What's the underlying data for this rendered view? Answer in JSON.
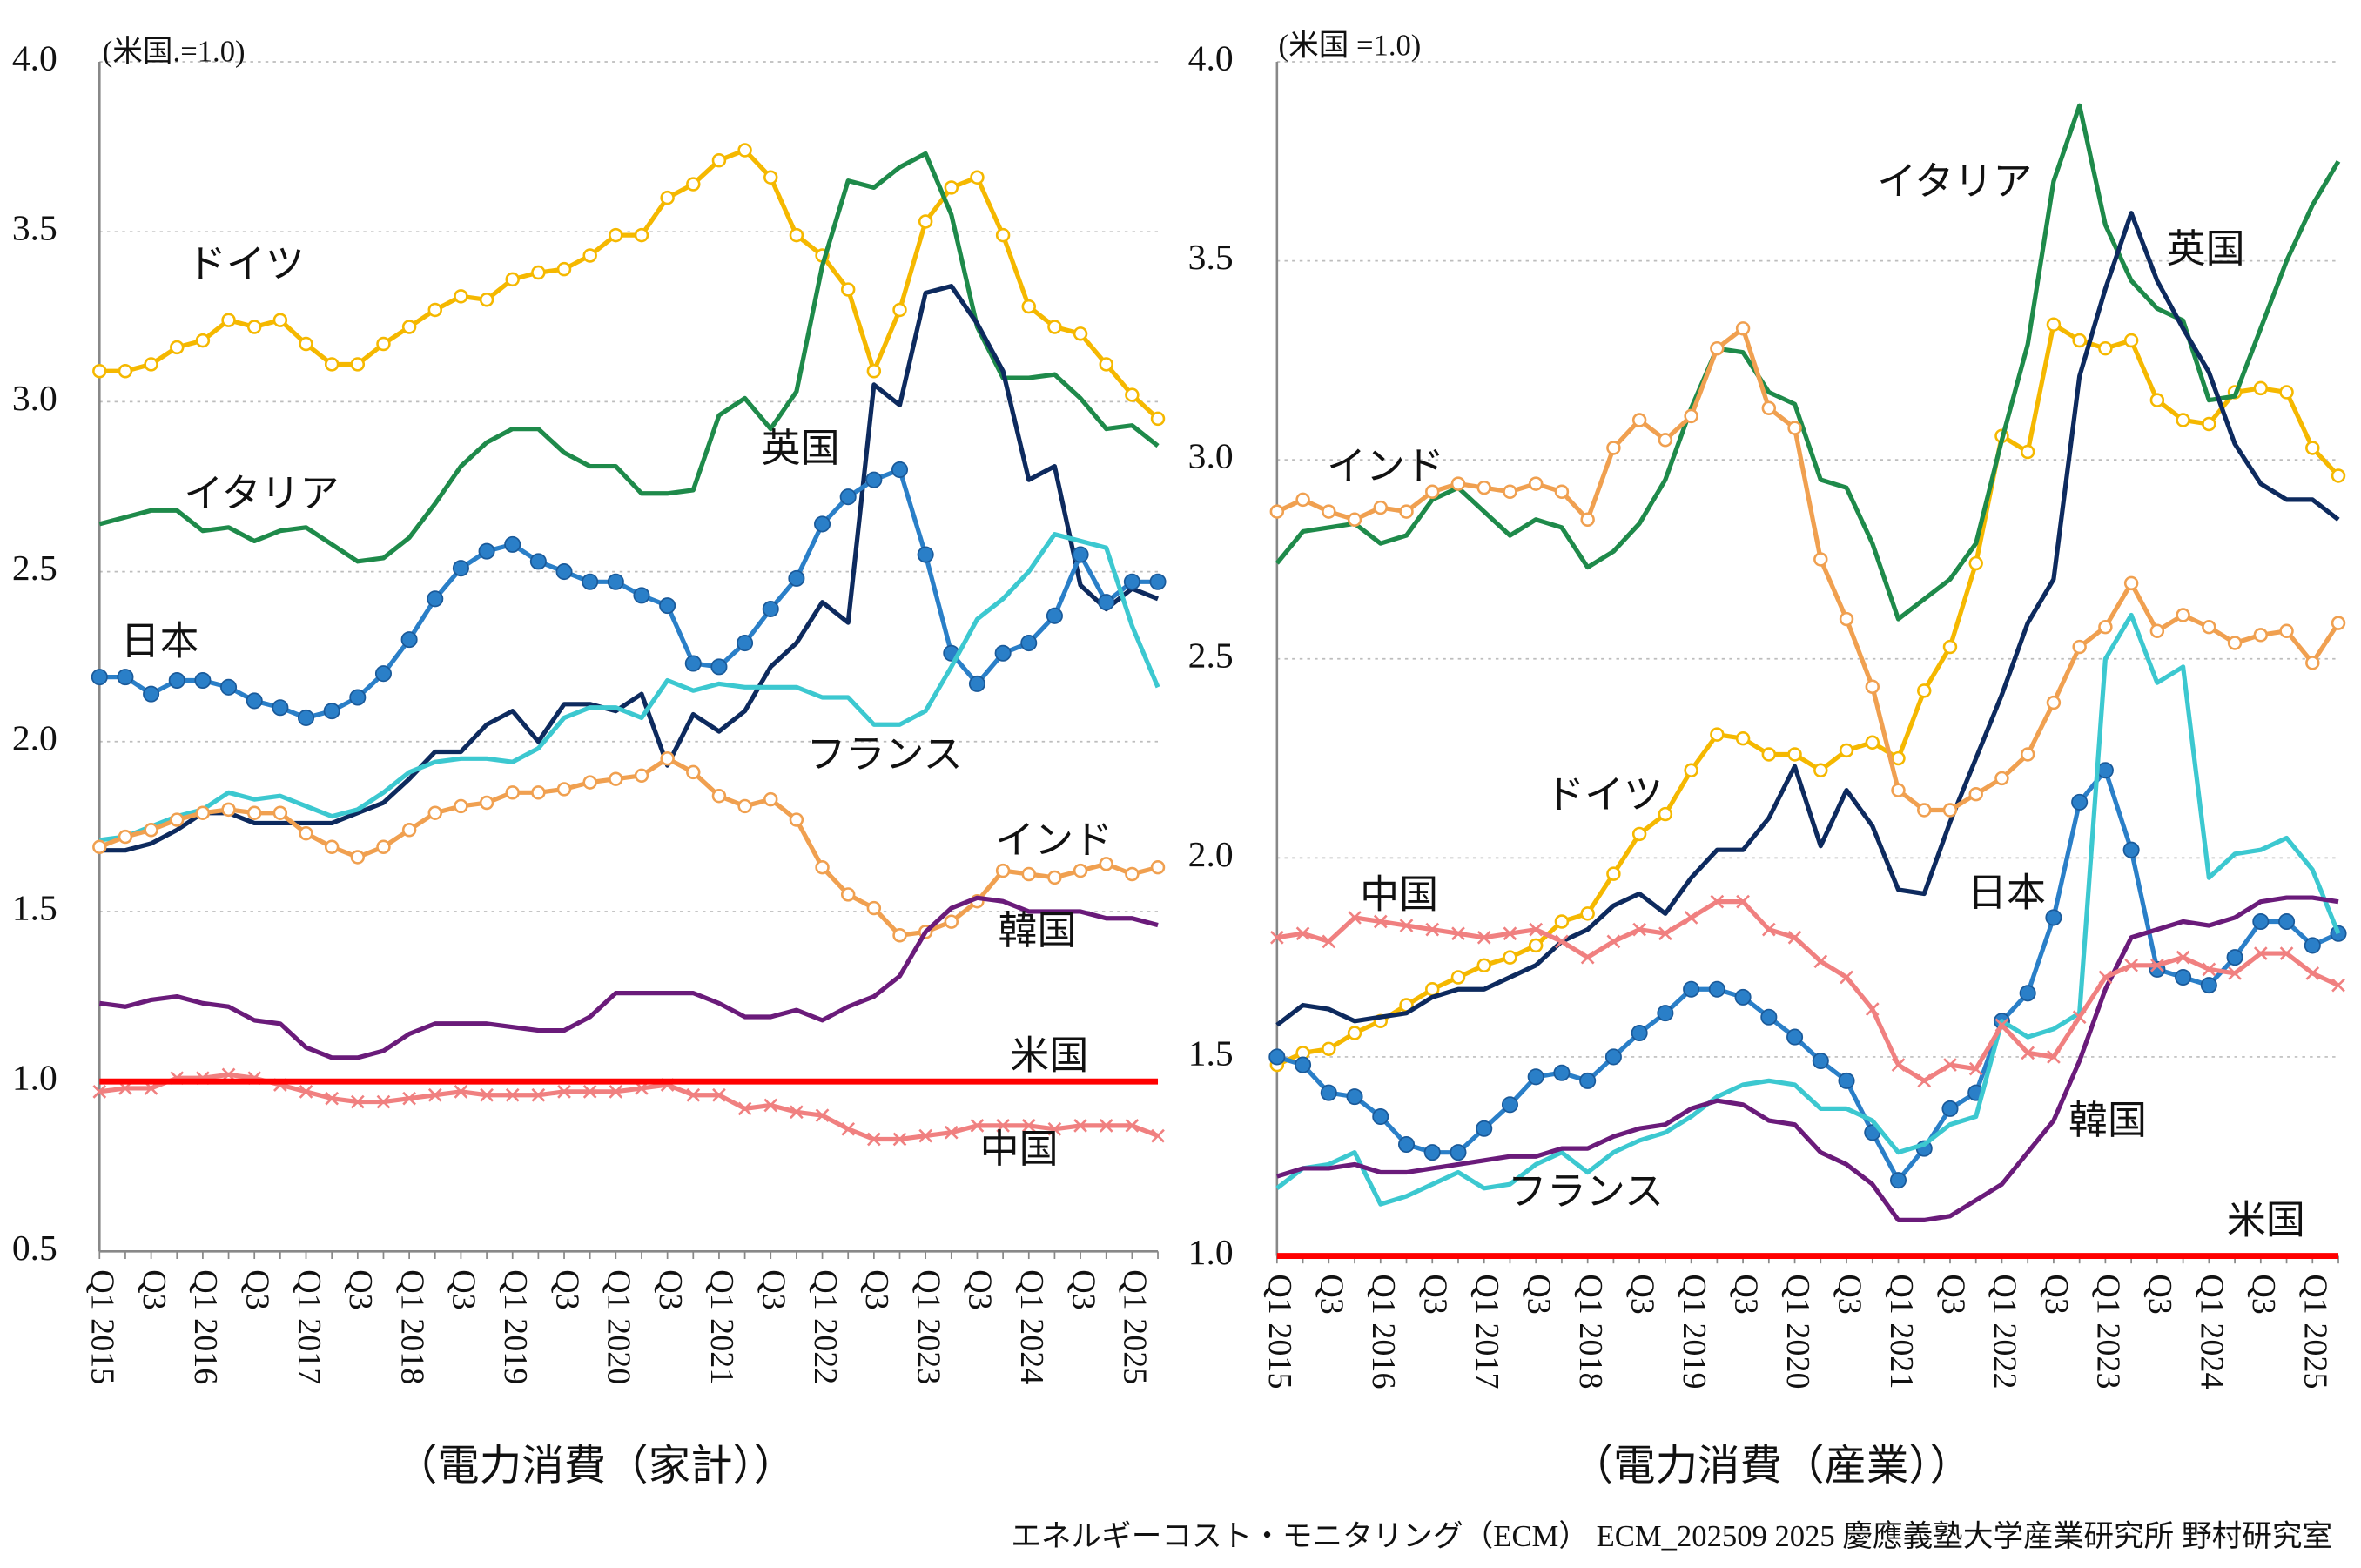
{
  "chart_data": [
    {
      "type": "line",
      "note": "(米国.=1.0)",
      "xlabel": "（電力消費（家計））",
      "categories": [
        "Q1 2015",
        null,
        "Q3",
        null,
        "Q1 2016",
        null,
        "Q3",
        null,
        "Q1 2017",
        null,
        "Q3",
        null,
        "Q1 2018",
        null,
        "Q3",
        null,
        "Q1 2019",
        null,
        "Q3",
        null,
        "Q1 2020",
        null,
        "Q3",
        null,
        "Q1 2021",
        null,
        "Q3",
        null,
        "Q1 2022",
        null,
        "Q3",
        null,
        "Q1 2023",
        null,
        "Q3",
        null,
        "Q1 2024",
        null,
        "Q3",
        null,
        "Q1 2025",
        null
      ],
      "ylim": [
        0.5,
        4
      ],
      "yticks": [
        0.5,
        {
          "value": 1,
          "label": "1.0"
        },
        1.5,
        {
          "value": 2,
          "label": "2.0"
        },
        2.5,
        {
          "value": 3,
          "label": "3.0"
        },
        3.5,
        {
          "value": 4,
          "label": "4.0"
        }
      ],
      "grid": true,
      "series": [
        {
          "name": "ドイツ",
          "color": "#f5b800",
          "marker": "open-circle",
          "values": [
            3.09,
            3.09,
            3.11,
            3.16,
            3.18,
            3.24,
            3.22,
            3.24,
            3.17,
            3.11,
            3.11,
            3.17,
            3.22,
            3.27,
            3.31,
            3.3,
            3.36,
            3.38,
            3.39,
            3.43,
            3.49,
            3.49,
            3.6,
            3.64,
            3.71,
            3.74,
            3.66,
            3.49,
            3.43,
            3.33,
            3.09,
            3.27,
            3.53,
            3.63,
            3.66,
            3.49,
            3.28,
            3.22,
            3.2,
            3.11,
            3.02,
            2.95
          ]
        },
        {
          "name": "イタリア",
          "color": "#1e8a4a",
          "values": [
            2.64,
            2.66,
            2.68,
            2.68,
            2.62,
            2.63,
            2.59,
            2.62,
            2.63,
            2.58,
            2.53,
            2.54,
            2.6,
            2.7,
            2.81,
            2.88,
            2.92,
            2.92,
            2.85,
            2.81,
            2.81,
            2.73,
            2.73,
            2.74,
            2.96,
            3.01,
            2.92,
            3.03,
            3.4,
            3.65,
            3.63,
            3.69,
            3.73,
            3.55,
            3.22,
            3.07,
            3.07,
            3.08,
            3.01,
            2.92,
            2.93,
            2.87
          ]
        },
        {
          "name": "英国",
          "color": "#0d2a5e",
          "values": [
            1.68,
            1.68,
            1.7,
            1.74,
            1.79,
            1.79,
            1.76,
            1.76,
            1.76,
            1.76,
            1.79,
            1.82,
            1.89,
            1.97,
            1.97,
            2.05,
            2.09,
            2.0,
            2.11,
            2.11,
            2.09,
            2.14,
            1.93,
            2.08,
            2.03,
            2.09,
            2.22,
            2.29,
            2.41,
            2.35,
            3.05,
            2.99,
            3.32,
            3.34,
            3.23,
            3.09,
            2.77,
            2.81,
            2.46,
            2.39,
            2.45,
            2.42
          ]
        },
        {
          "name": "日本",
          "color": "#2a7fc8",
          "marker": "filled-circle",
          "values": [
            2.19,
            2.19,
            2.14,
            2.18,
            2.18,
            2.16,
            2.12,
            2.1,
            2.07,
            2.09,
            2.13,
            2.2,
            2.3,
            2.42,
            2.51,
            2.56,
            2.58,
            2.53,
            2.5,
            2.47,
            2.47,
            2.43,
            2.4,
            2.23,
            2.22,
            2.29,
            2.39,
            2.48,
            2.64,
            2.72,
            2.77,
            2.8,
            2.55,
            2.26,
            2.17,
            2.26,
            2.29,
            2.37,
            2.55,
            2.41,
            2.47,
            2.47
          ]
        },
        {
          "name": "フランス",
          "color": "#3cc8d0",
          "values": [
            1.71,
            1.72,
            1.75,
            1.78,
            1.8,
            1.85,
            1.83,
            1.84,
            1.81,
            1.78,
            1.8,
            1.85,
            1.91,
            1.94,
            1.95,
            1.95,
            1.94,
            1.98,
            2.07,
            2.1,
            2.1,
            2.07,
            2.18,
            2.15,
            2.17,
            2.16,
            2.16,
            2.16,
            2.13,
            2.13,
            2.05,
            2.05,
            2.09,
            2.22,
            2.36,
            2.42,
            2.5,
            2.61,
            2.59,
            2.57,
            2.34,
            2.16
          ]
        },
        {
          "name": "インド",
          "color": "#f0a050",
          "marker": "open-circle",
          "values": [
            1.69,
            1.72,
            1.74,
            1.77,
            1.79,
            1.8,
            1.79,
            1.79,
            1.73,
            1.69,
            1.66,
            1.69,
            1.74,
            1.79,
            1.81,
            1.82,
            1.85,
            1.85,
            1.86,
            1.88,
            1.89,
            1.9,
            1.95,
            1.91,
            1.84,
            1.81,
            1.83,
            1.77,
            1.63,
            1.55,
            1.51,
            1.43,
            1.44,
            1.47,
            1.53,
            1.62,
            1.61,
            1.6,
            1.62,
            1.64,
            1.61,
            1.63
          ]
        },
        {
          "name": "韓国",
          "color": "#6a1b7a",
          "values": [
            1.23,
            1.22,
            1.24,
            1.25,
            1.23,
            1.22,
            1.18,
            1.17,
            1.1,
            1.07,
            1.07,
            1.09,
            1.14,
            1.17,
            1.17,
            1.17,
            1.16,
            1.15,
            1.15,
            1.19,
            1.26,
            1.26,
            1.26,
            1.26,
            1.23,
            1.19,
            1.19,
            1.21,
            1.18,
            1.22,
            1.25,
            1.31,
            1.44,
            1.51,
            1.54,
            1.53,
            1.5,
            1.5,
            1.5,
            1.48,
            1.48,
            1.46
          ]
        },
        {
          "name": "中国",
          "color": "#f08080",
          "marker": "cross",
          "values": [
            0.97,
            0.98,
            0.98,
            1.01,
            1.01,
            1.02,
            1.01,
            0.99,
            0.97,
            0.95,
            0.94,
            0.94,
            0.95,
            0.96,
            0.97,
            0.96,
            0.96,
            0.96,
            0.97,
            0.97,
            0.97,
            0.98,
            0.99,
            0.96,
            0.96,
            0.92,
            0.93,
            0.91,
            0.9,
            0.86,
            0.83,
            0.83,
            0.84,
            0.85,
            0.87,
            0.87,
            0.87,
            0.86,
            0.87,
            0.87,
            0.87,
            0.84
          ]
        },
        {
          "name": "米国",
          "color": "#ff0000",
          "values": [
            1,
            1,
            1,
            1,
            1,
            1,
            1,
            1,
            1,
            1,
            1,
            1,
            1,
            1,
            1,
            1,
            1,
            1,
            1,
            1,
            1,
            1,
            1,
            1,
            1,
            1,
            1,
            1,
            1,
            1,
            1,
            1,
            1,
            1,
            1,
            1,
            1,
            1,
            1,
            1,
            1,
            1
          ]
        }
      ]
    },
    {
      "type": "line",
      "note": "(米国 =1.0)",
      "xlabel": "（電力消費（産業））",
      "categories": [
        "Q1 2015",
        null,
        "Q3",
        null,
        "Q1 2016",
        null,
        "Q3",
        null,
        "Q1 2017",
        null,
        "Q3",
        null,
        "Q1 2018",
        null,
        "Q3",
        null,
        "Q1 2019",
        null,
        "Q3",
        null,
        "Q1 2020",
        null,
        "Q3",
        null,
        "Q1 2021",
        null,
        "Q3",
        null,
        "Q1 2022",
        null,
        "Q3",
        null,
        "Q1 2023",
        null,
        "Q3",
        null,
        "Q1 2024",
        null,
        "Q3",
        null,
        "Q1 2025",
        null
      ],
      "ylim": [
        1,
        4
      ],
      "yticks": [
        {
          "value": 1,
          "label": "1.0"
        },
        1.5,
        {
          "value": 2,
          "label": "2.0"
        },
        2.5,
        {
          "value": 3,
          "label": "3.0"
        },
        3.5,
        {
          "value": 4,
          "label": "4.0"
        }
      ],
      "grid": true,
      "series": [
        {
          "name": "ドイツ",
          "color": "#f5b800",
          "marker": "open-circle",
          "values": [
            1.48,
            1.51,
            1.52,
            1.56,
            1.59,
            1.63,
            1.67,
            1.7,
            1.73,
            1.75,
            1.78,
            1.84,
            1.86,
            1.96,
            2.06,
            2.11,
            2.22,
            2.31,
            2.3,
            2.26,
            2.26,
            2.22,
            2.27,
            2.29,
            2.25,
            2.42,
            2.53,
            2.74,
            3.06,
            3.02,
            3.34,
            3.3,
            3.28,
            3.3,
            3.15,
            3.1,
            3.09,
            3.17,
            3.18,
            3.17,
            3.03,
            2.96
          ]
        },
        {
          "name": "イタリア",
          "color": "#1e8a4a",
          "values": [
            2.74,
            2.82,
            2.83,
            2.84,
            2.79,
            2.81,
            2.9,
            2.93,
            2.87,
            2.81,
            2.85,
            2.83,
            2.73,
            2.77,
            2.84,
            2.95,
            3.13,
            3.28,
            3.27,
            3.17,
            3.14,
            2.95,
            2.93,
            2.79,
            2.6,
            2.65,
            2.7,
            2.79,
            3.05,
            3.29,
            3.7,
            3.89,
            3.59,
            3.45,
            3.38,
            3.35,
            3.15,
            3.16,
            3.33,
            3.5,
            3.64,
            3.75
          ]
        },
        {
          "name": "英国",
          "color": "#0d2a5e",
          "values": [
            1.58,
            1.63,
            1.62,
            1.59,
            1.6,
            1.61,
            1.65,
            1.67,
            1.67,
            1.7,
            1.73,
            1.79,
            1.82,
            1.88,
            1.91,
            1.86,
            1.95,
            2.02,
            2.02,
            2.1,
            2.23,
            2.03,
            2.17,
            2.08,
            1.92,
            1.91,
            2.09,
            2.25,
            2.41,
            2.59,
            2.7,
            3.21,
            3.43,
            3.62,
            3.45,
            3.33,
            3.22,
            3.04,
            2.94,
            2.9,
            2.9,
            2.85
          ]
        },
        {
          "name": "日本",
          "color": "#2a7fc8",
          "marker": "filled-circle",
          "values": [
            1.5,
            1.48,
            1.41,
            1.4,
            1.35,
            1.28,
            1.26,
            1.26,
            1.32,
            1.38,
            1.45,
            1.46,
            1.44,
            1.5,
            1.56,
            1.61,
            1.67,
            1.67,
            1.65,
            1.6,
            1.55,
            1.49,
            1.44,
            1.31,
            1.19,
            1.27,
            1.37,
            1.41,
            1.59,
            1.66,
            1.85,
            2.14,
            2.22,
            2.02,
            1.72,
            1.7,
            1.68,
            1.75,
            1.84,
            1.84,
            1.78,
            1.81
          ]
        },
        {
          "name": "フランス",
          "color": "#3cc8d0",
          "values": [
            1.17,
            1.22,
            1.23,
            1.26,
            1.13,
            1.15,
            1.18,
            1.21,
            1.17,
            1.18,
            1.23,
            1.26,
            1.21,
            1.26,
            1.29,
            1.31,
            1.35,
            1.4,
            1.43,
            1.44,
            1.43,
            1.37,
            1.37,
            1.34,
            1.26,
            1.28,
            1.33,
            1.35,
            1.59,
            1.55,
            1.57,
            1.61,
            2.5,
            2.61,
            2.44,
            2.48,
            1.95,
            2.01,
            2.02,
            2.05,
            1.97,
            1.81
          ]
        },
        {
          "name": "インド",
          "color": "#f0a050",
          "marker": "open-circle",
          "values": [
            2.87,
            2.9,
            2.87,
            2.85,
            2.88,
            2.87,
            2.92,
            2.94,
            2.93,
            2.92,
            2.94,
            2.92,
            2.85,
            3.03,
            3.1,
            3.05,
            3.11,
            3.28,
            3.33,
            3.13,
            3.08,
            2.75,
            2.6,
            2.43,
            2.17,
            2.12,
            2.12,
            2.16,
            2.2,
            2.26,
            2.39,
            2.53,
            2.58,
            2.69,
            2.57,
            2.61,
            2.58,
            2.54,
            2.56,
            2.57,
            2.49,
            2.59
          ]
        },
        {
          "name": "韓国",
          "color": "#6a1b7a",
          "values": [
            1.2,
            1.22,
            1.22,
            1.23,
            1.21,
            1.21,
            1.22,
            1.23,
            1.24,
            1.25,
            1.25,
            1.27,
            1.27,
            1.3,
            1.32,
            1.33,
            1.37,
            1.39,
            1.38,
            1.34,
            1.33,
            1.26,
            1.23,
            1.18,
            1.09,
            1.09,
            1.1,
            1.14,
            1.18,
            1.26,
            1.34,
            1.49,
            1.67,
            1.8,
            1.82,
            1.84,
            1.83,
            1.85,
            1.89,
            1.9,
            1.9,
            1.89
          ]
        },
        {
          "name": "中国",
          "color": "#f08080",
          "marker": "cross",
          "values": [
            1.8,
            1.81,
            1.79,
            1.85,
            1.84,
            1.83,
            1.82,
            1.81,
            1.8,
            1.81,
            1.82,
            1.79,
            1.75,
            1.79,
            1.82,
            1.81,
            1.85,
            1.89,
            1.89,
            1.82,
            1.8,
            1.74,
            1.7,
            1.62,
            1.48,
            1.44,
            1.48,
            1.47,
            1.58,
            1.51,
            1.5,
            1.6,
            1.7,
            1.73,
            1.73,
            1.75,
            1.72,
            1.71,
            1.76,
            1.76,
            1.71,
            1.68
          ]
        },
        {
          "name": "米国",
          "color": "#ff0000",
          "values": [
            1,
            1,
            1,
            1,
            1,
            1,
            1,
            1,
            1,
            1,
            1,
            1,
            1,
            1,
            1,
            1,
            1,
            1,
            1,
            1,
            1,
            1,
            1,
            1,
            1,
            1,
            1,
            1,
            1,
            1,
            1,
            1,
            1,
            1,
            1,
            1,
            1,
            1,
            1,
            1,
            1,
            1
          ]
        }
      ]
    }
  ],
  "footer": "エネルギーコスト・モニタリング（ECM） ECM_202509 2025 慶應義塾大学産業研究所 野村研究室"
}
